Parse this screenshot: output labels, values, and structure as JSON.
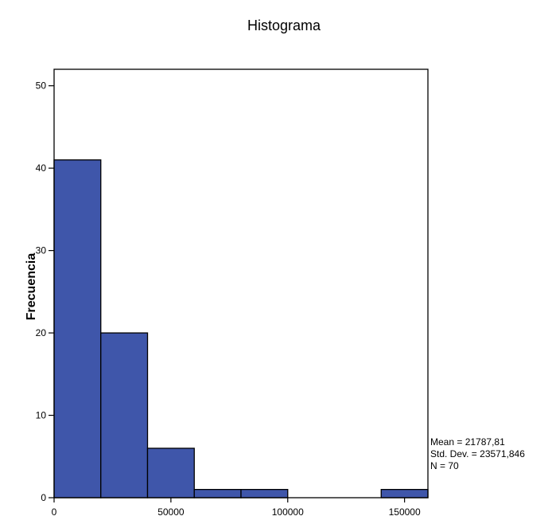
{
  "chart_data": {
    "type": "bar",
    "title": "Histograma",
    "xlabel": "",
    "ylabel": "Frecuencia",
    "bins": [
      {
        "start": 0,
        "end": 20000,
        "count": 41
      },
      {
        "start": 20000,
        "end": 40000,
        "count": 20
      },
      {
        "start": 40000,
        "end": 60000,
        "count": 6
      },
      {
        "start": 60000,
        "end": 80000,
        "count": 1
      },
      {
        "start": 80000,
        "end": 100000,
        "count": 1
      },
      {
        "start": 100000,
        "end": 120000,
        "count": 0
      },
      {
        "start": 120000,
        "end": 140000,
        "count": 0
      },
      {
        "start": 140000,
        "end": 160000,
        "count": 1
      }
    ],
    "xlim": [
      0,
      160000
    ],
    "ylim": [
      0,
      52
    ],
    "x_ticks": [
      0,
      50000,
      100000,
      150000
    ],
    "x_tick_labels": [
      "0",
      "50000",
      "100000",
      "150000"
    ],
    "y_ticks": [
      0,
      10,
      20,
      30,
      40,
      50
    ],
    "y_tick_labels": [
      "0",
      "10",
      "20",
      "30",
      "40",
      "50"
    ],
    "bar_color": "#3f56aa",
    "grid": false,
    "stats": {
      "mean": "Mean = 21787,81",
      "std": "Std. Dev. = 23571,846",
      "n": "N = 70"
    }
  }
}
